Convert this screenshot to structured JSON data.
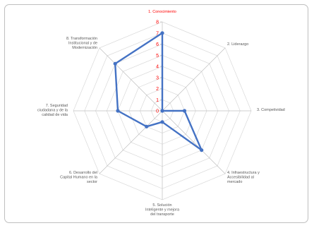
{
  "chart_data": {
    "type": "radar",
    "title": "",
    "categories": [
      "1. Conocimiento",
      "2. Liderazgo",
      "3. Competividad",
      "4. Infraestructura y Accesibilidad al mercado",
      "5. Solución Inteligente y mejora del transporte",
      "6. Desarrollo del Capital Humano en la sector",
      "7. Seguridad ciudadana y de la calidad de vida",
      "8. Transformación Institucional y de Modernización"
    ],
    "category_label_lines": [
      [
        "1. Conocimiento"
      ],
      [
        "2. Liderazgo"
      ],
      [
        "3. Competividad"
      ],
      [
        "4. Infraestructura y",
        "Accesibilidad al",
        "mercado"
      ],
      [
        "5. Solución",
        "Inteligente y mejora",
        "del transporte"
      ],
      [
        "6. Desarrollo del",
        "Capital Humano en la",
        "sector"
      ],
      [
        "7. Seguridad",
        "ciudadana y de la",
        "calidad de vida"
      ],
      [
        "8. Transformación",
        "Institucional y de",
        "Modernización"
      ]
    ],
    "series": [
      {
        "values": [
          7,
          0,
          2,
          5,
          1,
          2,
          4,
          6
        ]
      }
    ],
    "rlim": [
      0,
      8
    ],
    "ticks": [
      0,
      1,
      2,
      3,
      4,
      5,
      6,
      7,
      8
    ],
    "grid": true,
    "legend": "none",
    "colors": {
      "series": "#4472c4",
      "tick_labels": "#ff0000",
      "grid": "#d9d9d9",
      "axis": "#bfbfbf",
      "text": "#595959"
    }
  }
}
